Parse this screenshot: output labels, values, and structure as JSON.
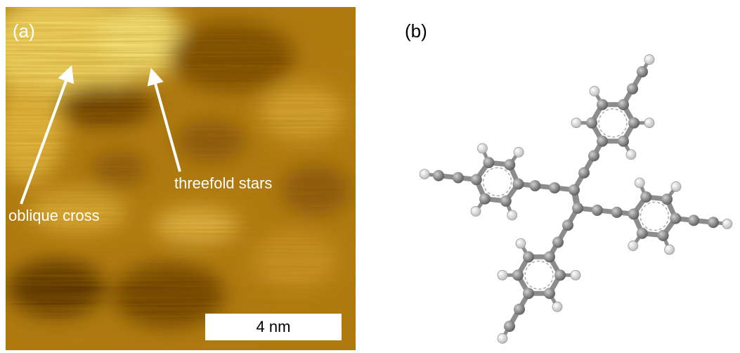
{
  "panel_a": {
    "label": "(a)",
    "annotations": [
      "oblique cross",
      "threefold stars"
    ],
    "scale_bar": "4 nm"
  },
  "panel_b": {
    "label": "(b)"
  }
}
